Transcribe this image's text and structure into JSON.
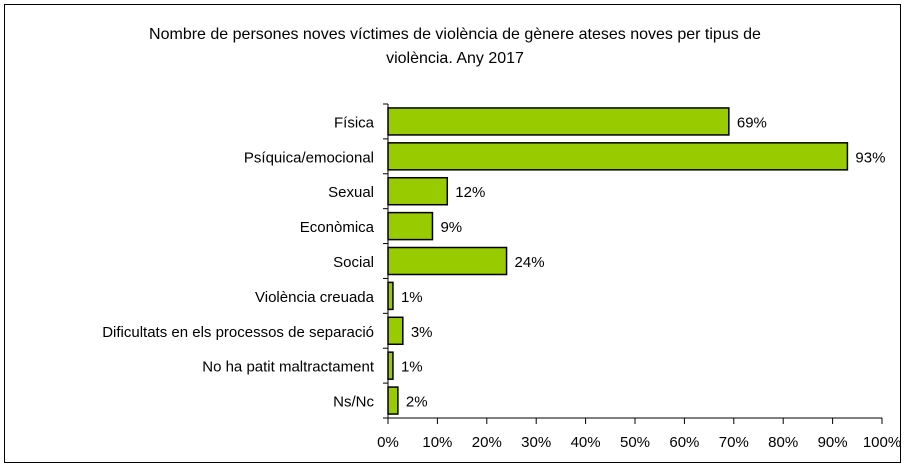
{
  "chart_data": {
    "type": "bar",
    "orientation": "horizontal",
    "title_line1": "Nombre de persones noves víctimes de violència de gènere ateses noves per tipus de",
    "title_line2": "violència. Any 2017",
    "categories": [
      "Física",
      "Psíquica/emocional",
      "Sexual",
      "Econòmica",
      "Social",
      "Violència creuada",
      "Dificultats en els processos de separació",
      "No ha patit maltractament",
      "Ns/Nc"
    ],
    "values": [
      69,
      93,
      12,
      9,
      24,
      1,
      3,
      1,
      2
    ],
    "value_labels": [
      "69%",
      "93%",
      "12%",
      "9%",
      "24%",
      "1%",
      "3%",
      "1%",
      "2%"
    ],
    "xlim": [
      0,
      100
    ],
    "x_ticks": [
      "0%",
      "10%",
      "20%",
      "30%",
      "40%",
      "50%",
      "60%",
      "70%",
      "80%",
      "90%",
      "100%"
    ],
    "bar_color": "#99cc00",
    "bar_border_color": "#000000",
    "grid": false
  }
}
